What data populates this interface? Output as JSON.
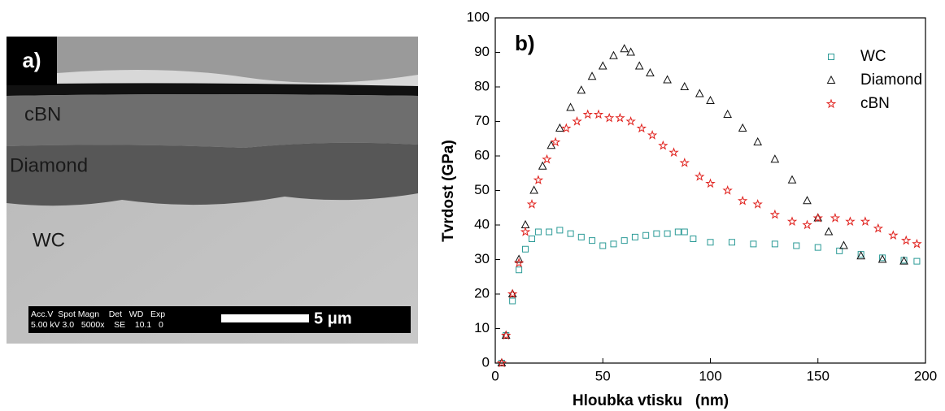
{
  "image": {
    "panel_label": "a)",
    "layer_labels": [
      "cBN",
      "Diamond",
      "WC"
    ],
    "info_header": "Acc.V  Spot Magn    Det   WD   Exp",
    "info_values": "5.00 kV 3.0   5000x    SE    10.1   0",
    "scale_label": "5 μm"
  },
  "chart_data": {
    "type": "scatter",
    "title": "b)",
    "xlabel": "Hloubka vtisku   (nm)",
    "ylabel": "Tvrdost (GPa)",
    "xlim": [
      0,
      200
    ],
    "xticks": [
      0,
      50,
      100,
      150,
      200
    ],
    "ylim": [
      0,
      100
    ],
    "yticks": [
      0,
      10,
      20,
      30,
      40,
      50,
      60,
      70,
      80,
      90,
      100
    ],
    "legend": "top-right",
    "series": [
      {
        "name": "WC",
        "color": "#2a9a96",
        "marker": "square",
        "x": [
          3,
          5,
          8,
          11,
          14,
          17,
          20,
          25,
          30,
          35,
          40,
          45,
          50,
          55,
          60,
          65,
          70,
          75,
          80,
          85,
          88,
          92,
          100,
          110,
          120,
          130,
          140,
          150,
          160,
          170,
          180,
          190,
          196
        ],
        "values": [
          0,
          8,
          18,
          27,
          33,
          36,
          38,
          38,
          38.5,
          37.5,
          36.5,
          35.5,
          34,
          34.5,
          35.5,
          36.5,
          37,
          37.5,
          37.5,
          38,
          38,
          36,
          35,
          35,
          34.5,
          34.5,
          34,
          33.5,
          32.5,
          31.5,
          30.5,
          29.8,
          29.5
        ]
      },
      {
        "name": "Diamond",
        "color": "#111111",
        "marker": "triangle",
        "x": [
          3,
          5,
          8,
          11,
          14,
          18,
          22,
          26,
          30,
          35,
          40,
          45,
          50,
          55,
          60,
          63,
          67,
          72,
          80,
          88,
          95,
          100,
          108,
          115,
          122,
          130,
          138,
          145,
          150,
          155,
          162,
          170,
          180,
          190
        ],
        "values": [
          0,
          8,
          20,
          30,
          40,
          50,
          57,
          63,
          68,
          74,
          79,
          83,
          86,
          89,
          91,
          90,
          86,
          84,
          82,
          80,
          78,
          76,
          72,
          68,
          64,
          59,
          53,
          47,
          42,
          38,
          34,
          31,
          30,
          29.5
        ]
      },
      {
        "name": "cBN",
        "color": "#e0201c",
        "marker": "star",
        "x": [
          3,
          5,
          8,
          11,
          14,
          17,
          20,
          24,
          28,
          33,
          38,
          43,
          48,
          53,
          58,
          63,
          68,
          73,
          78,
          83,
          88,
          95,
          100,
          108,
          115,
          122,
          130,
          138,
          145,
          150,
          158,
          165,
          172,
          178,
          185,
          191,
          196
        ],
        "values": [
          0,
          8,
          20,
          29,
          38,
          46,
          53,
          59,
          64,
          68,
          70,
          72,
          72,
          71,
          71,
          70,
          68,
          66,
          63,
          61,
          58,
          54,
          52,
          50,
          47,
          46,
          43,
          41,
          40,
          42,
          42,
          41,
          41,
          39,
          37,
          35.5,
          34.5
        ]
      }
    ]
  }
}
